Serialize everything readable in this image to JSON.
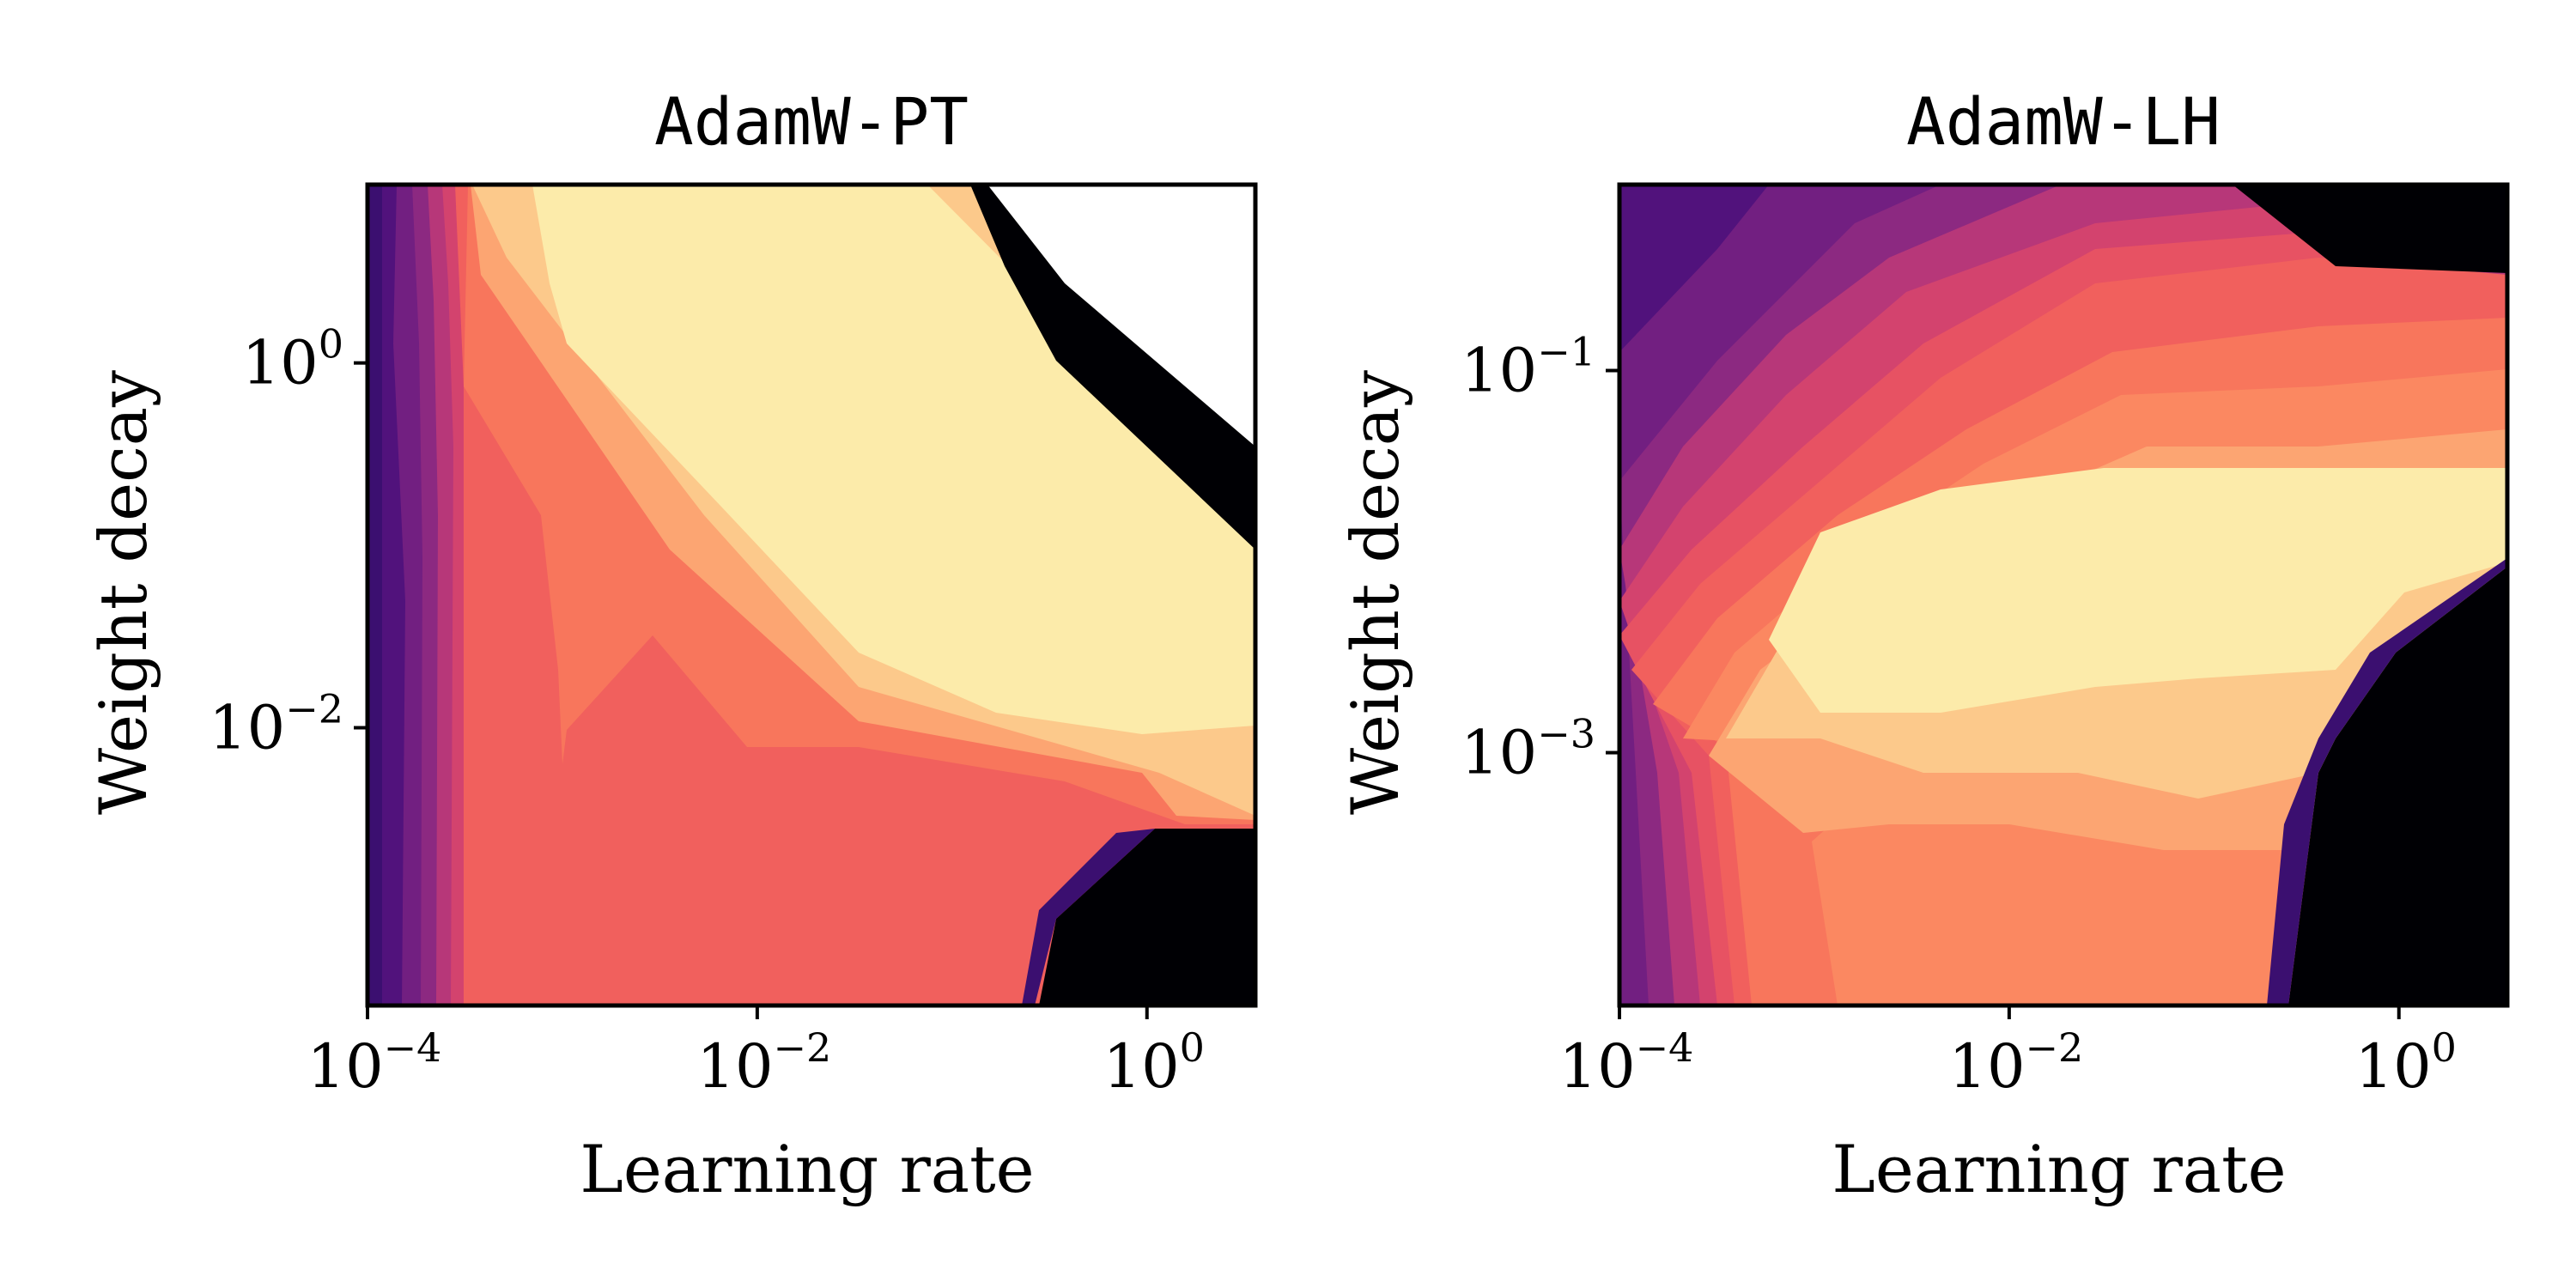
{
  "chart_data": [
    {
      "type": "heatmap",
      "title": "AdamW-PT",
      "xlabel": "Learning rate",
      "ylabel": "Weight decay",
      "x_scale": "log",
      "y_scale": "log",
      "xlim": [
        0.0001,
        3.6
      ],
      "ylim": [
        0.0003,
        9.5
      ],
      "x_ticks": [
        {
          "base": "10",
          "exp": "−4",
          "value": 0.0001
        },
        {
          "base": "10",
          "exp": "−2",
          "value": 0.01
        },
        {
          "base": "10",
          "exp": "0",
          "value": 1
        }
      ],
      "y_ticks": [
        {
          "base": "10",
          "exp": "0",
          "value": 1
        },
        {
          "base": "10",
          "exp": "−2",
          "value": 0.01
        }
      ],
      "colormap": "magma",
      "grid": false,
      "legend": "none",
      "shape": "diagonal ridge (high lr ↔ low wd), diverged region top-right and bottom-right"
    },
    {
      "type": "heatmap",
      "title": "AdamW-LH",
      "xlabel": "Learning rate",
      "ylabel": "Weight decay",
      "x_scale": "log",
      "y_scale": "log",
      "xlim": [
        0.0001,
        3.6
      ],
      "ylim": [
        4.75e-05,
        0.94
      ],
      "x_ticks": [
        {
          "base": "10",
          "exp": "−4",
          "value": 0.0001
        },
        {
          "base": "10",
          "exp": "−2",
          "value": 0.01
        },
        {
          "base": "10",
          "exp": "0",
          "value": 1
        }
      ],
      "y_ticks": [
        {
          "base": "10",
          "exp": "−1",
          "value": 0.1
        },
        {
          "base": "10",
          "exp": "−3",
          "value": 0.001
        }
      ],
      "colormap": "magma",
      "grid": false,
      "legend": "none",
      "shape": "horizontal plateau around wd≈3e-3 to 2e-2, diverged region bottom-right and top-right"
    }
  ],
  "colors": {
    "diverged": "#000004",
    "levels": [
      "#3b0f70",
      "#51127c",
      "#721f81",
      "#8c2981",
      "#b73779",
      "#d3436e",
      "#e75263",
      "#f1605d",
      "#f8765c",
      "#fb8861",
      "#fca572",
      "#fcc98b",
      "#fcebaa"
    ]
  }
}
